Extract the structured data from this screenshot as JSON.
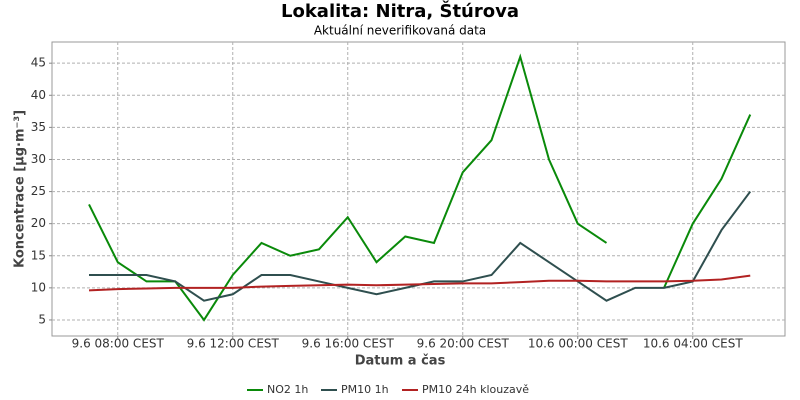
{
  "chart_data": {
    "type": "line",
    "title": "Lokalita: Nitra, Štúrova",
    "subtitle": "Aktuální neverifikovaná data",
    "x_label": "Datum a čas",
    "y_label": "Koncentrace [µg·m⁻³]",
    "categories": [
      null,
      "9.6 08:00 CEST",
      null,
      null,
      null,
      "9.6 12:00 CEST",
      null,
      null,
      null,
      "9.6 16:00 CEST",
      null,
      null,
      null,
      "9.6 20:00 CEST",
      null,
      null,
      null,
      "10.6 00:00 CEST",
      null,
      null,
      null,
      "10.6 04:00 CEST",
      null,
      null
    ],
    "series": [
      {
        "name": "NO2 1h",
        "color": "#0a8a0a",
        "values": [
          23,
          14,
          11,
          11,
          5,
          12,
          17,
          15,
          16,
          21,
          14,
          18,
          17,
          28,
          33,
          46,
          30,
          20,
          17,
          null,
          10,
          20,
          27,
          37
        ]
      },
      {
        "name": "PM10 1h",
        "color": "#2f4f4f",
        "values": [
          12,
          12,
          12,
          11,
          8,
          9,
          12,
          12,
          11,
          10,
          9,
          10,
          11,
          11,
          12,
          17,
          14,
          11,
          8,
          10,
          10,
          11,
          19,
          25
        ]
      },
      {
        "name": "PM10 24h klouzavě",
        "color": "#b22222",
        "values": [
          9.6,
          9.8,
          9.9,
          10.0,
          10.0,
          10.0,
          10.2,
          10.3,
          10.4,
          10.5,
          10.4,
          10.5,
          10.6,
          10.7,
          10.7,
          10.9,
          11.1,
          11.1,
          11.0,
          11.0,
          11.0,
          11.1,
          11.3,
          11.9
        ]
      }
    ],
    "ylim": [
      2.5,
      48.3
    ],
    "yticks": [
      5,
      10,
      15,
      20,
      25,
      30,
      35,
      40,
      45
    ],
    "grid": true,
    "legend": "bottom"
  }
}
